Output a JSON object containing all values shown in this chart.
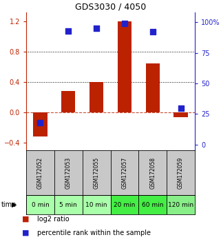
{
  "title": "GDS3030 / 4050",
  "samples": [
    "GSM172052",
    "GSM172053",
    "GSM172055",
    "GSM172057",
    "GSM172058",
    "GSM172059"
  ],
  "time_labels": [
    "0 min",
    "5 min",
    "10 min",
    "20 min",
    "60 min",
    "120 min"
  ],
  "log2_ratio": [
    -0.32,
    0.28,
    0.4,
    1.2,
    0.65,
    -0.06
  ],
  "percentile_rank": [
    18,
    93,
    95,
    99,
    92,
    30
  ],
  "ylim_left": [
    -0.5,
    1.32
  ],
  "ylim_right": [
    -4.6,
    108
  ],
  "yticks_left": [
    -0.4,
    0.0,
    0.4,
    0.8,
    1.2
  ],
  "yticks_right": [
    0,
    25,
    50,
    75,
    100
  ],
  "ytick_labels_right": [
    "0",
    "25",
    "50",
    "75",
    "100%"
  ],
  "hlines_dotted": [
    0.4,
    0.8
  ],
  "hline_dashed": 0.0,
  "bar_color": "#bb2200",
  "dot_color": "#2222cc",
  "bar_width": 0.5,
  "dot_size": 28,
  "gsm_row_color": "#c8c8c8",
  "time_row_colors": [
    "#aaffaa",
    "#aaffaa",
    "#aaffaa",
    "#44ee44",
    "#44ee44",
    "#88ee88"
  ],
  "legend_red_label": "log2 ratio",
  "legend_blue_label": "percentile rank within the sample",
  "background_color": "#ffffff",
  "title_fontsize": 9,
  "tick_fontsize": 7,
  "gsm_fontsize": 5.5,
  "time_fontsize": 6.5,
  "legend_fontsize": 7
}
